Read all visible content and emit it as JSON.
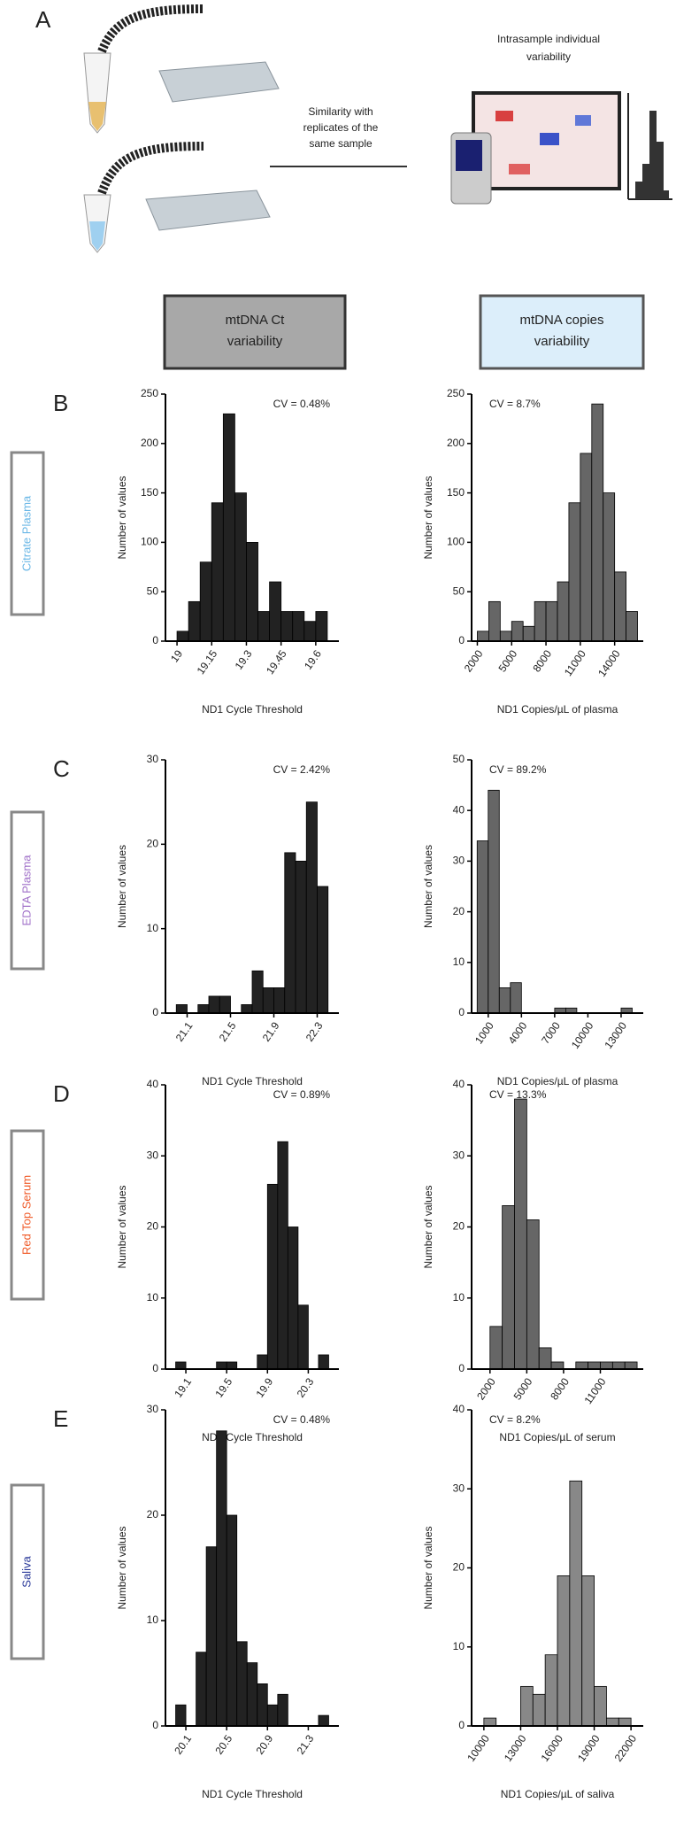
{
  "figure": {
    "panel_a": "A",
    "intrasample": [
      "Intrasample individual",
      "variability"
    ],
    "similarity": [
      "Similarity with",
      "replicates of the",
      "same sample"
    ],
    "header_ct": [
      "mtDNA Ct",
      "variability"
    ],
    "header_copies": [
      "mtDNA copies",
      "variability"
    ],
    "rows": [
      {
        "letter": "B",
        "label": "Citrate Plasma",
        "color": "#6ab7e6"
      },
      {
        "letter": "C",
        "label": "EDTA Plasma",
        "color": "#a070c8"
      },
      {
        "letter": "D",
        "label": "Red Top Serum",
        "color": "#f05a28"
      },
      {
        "letter": "E",
        "label": "Saliva",
        "color": "#2b3a9a"
      }
    ]
  },
  "chart_data": [
    {
      "type": "histogram",
      "annotation": "CV = 0.48%",
      "xlabel": "ND1 Cycle Threshold",
      "ylabel": "Number of values",
      "color": "#222222",
      "bins": [
        19.0,
        19.05,
        19.1,
        19.15,
        19.2,
        19.25,
        19.3,
        19.35,
        19.4,
        19.45,
        19.5,
        19.55,
        19.6,
        19.65
      ],
      "values": [
        10,
        40,
        80,
        140,
        230,
        150,
        100,
        30,
        60,
        30,
        30,
        20,
        30
      ],
      "xlim": [
        18.95,
        19.7
      ],
      "xticks": [
        19.0,
        19.15,
        19.3,
        19.45,
        19.6
      ],
      "ylim": [
        0,
        250
      ],
      "yticks": [
        0,
        50,
        100,
        150,
        200,
        250
      ]
    },
    {
      "type": "histogram",
      "annotation": "CV = 8.7%",
      "xlabel": "ND1 Copies/µL of plasma",
      "ylabel": "Number of values",
      "color": "#666666",
      "bins": [
        2000,
        3000,
        4000,
        5000,
        6000,
        7000,
        8000,
        9000,
        10000,
        11000,
        12000,
        13000,
        14000,
        15000,
        16000
      ],
      "values": [
        10,
        40,
        10,
        20,
        15,
        40,
        40,
        60,
        140,
        190,
        240,
        150,
        70,
        30
      ],
      "xlim": [
        1500,
        16500
      ],
      "xticks": [
        2000,
        5000,
        8000,
        11000,
        14000
      ],
      "ylim": [
        0,
        250
      ],
      "yticks": [
        0,
        50,
        100,
        150,
        200,
        250
      ]
    },
    {
      "type": "histogram",
      "annotation": "CV = 2.42%",
      "xlabel": "ND1 Cycle Threshold",
      "ylabel": "Number of values",
      "color": "#222222",
      "bins": [
        21.0,
        21.1,
        21.2,
        21.3,
        21.4,
        21.5,
        21.6,
        21.7,
        21.8,
        21.9,
        22.0,
        22.1,
        22.2,
        22.3,
        22.4
      ],
      "values": [
        1,
        0,
        1,
        2,
        2,
        0,
        1,
        5,
        3,
        3,
        19,
        18,
        25,
        15
      ],
      "xlim": [
        20.9,
        22.5
      ],
      "xticks": [
        21.1,
        21.5,
        21.9,
        22.3
      ],
      "ylim": [
        0,
        30
      ],
      "yticks": [
        0,
        10,
        20,
        30
      ]
    },
    {
      "type": "histogram",
      "annotation": "CV = 89.2%",
      "xlabel": "ND1 Copies/µL of plasma",
      "ylabel": "Number of values",
      "color": "#666666",
      "bins": [
        0,
        1000,
        2000,
        3000,
        4000,
        5000,
        6000,
        7000,
        8000,
        9000,
        10000,
        11000,
        12000,
        13000,
        14000
      ],
      "values": [
        34,
        44,
        5,
        6,
        0,
        0,
        0,
        1,
        1,
        0,
        0,
        0,
        0,
        1
      ],
      "xlim": [
        -500,
        15000
      ],
      "xticks": [
        1000,
        4000,
        7000,
        10000,
        13000
      ],
      "ylim": [
        0,
        50
      ],
      "yticks": [
        0,
        10,
        20,
        30,
        40,
        50
      ]
    },
    {
      "type": "histogram",
      "annotation": "CV = 0.89%",
      "xlabel": "ND1 Cycle Threshold",
      "ylabel": "Number of values",
      "color": "#222222",
      "bins": [
        19.0,
        19.1,
        19.2,
        19.3,
        19.4,
        19.5,
        19.6,
        19.7,
        19.8,
        19.9,
        20.0,
        20.1,
        20.2,
        20.3,
        20.4,
        20.5
      ],
      "values": [
        1,
        0,
        0,
        0,
        1,
        1,
        0,
        0,
        2,
        26,
        32,
        20,
        9,
        0,
        2
      ],
      "xlim": [
        18.9,
        20.6
      ],
      "xticks": [
        19.1,
        19.5,
        19.9,
        20.3
      ],
      "ylim": [
        0,
        40
      ],
      "yticks": [
        0,
        10,
        20,
        30,
        40
      ]
    },
    {
      "type": "histogram",
      "annotation": "CV = 13.3%",
      "xlabel": "ND1 Copies/µL of serum",
      "ylabel": "Number of values",
      "color": "#666666",
      "bins": [
        1000,
        2000,
        3000,
        4000,
        5000,
        6000,
        7000,
        8000,
        9000,
        10000,
        11000,
        12000,
        13000,
        14000
      ],
      "values": [
        0,
        6,
        23,
        38,
        21,
        3,
        1,
        0,
        1,
        1,
        1,
        1,
        1
      ],
      "xlim": [
        500,
        14500
      ],
      "xticks": [
        2000,
        5000,
        8000,
        11000
      ],
      "ylim": [
        0,
        40
      ],
      "yticks": [
        0,
        10,
        20,
        30,
        40
      ]
    },
    {
      "type": "histogram",
      "annotation": "CV = 0.48%",
      "xlabel": "ND1 Cycle Threshold",
      "ylabel": "Number of values",
      "color": "#222222",
      "bins": [
        20.0,
        20.1,
        20.2,
        20.3,
        20.4,
        20.5,
        20.6,
        20.7,
        20.8,
        20.9,
        21.0,
        21.1,
        21.2,
        21.3,
        21.4,
        21.5
      ],
      "values": [
        2,
        0,
        7,
        17,
        28,
        20,
        8,
        6,
        4,
        2,
        3,
        0,
        0,
        0,
        1
      ],
      "xlim": [
        19.9,
        21.6
      ],
      "xticks": [
        20.1,
        20.5,
        20.9,
        21.3
      ],
      "ylim": [
        0,
        30
      ],
      "yticks": [
        0,
        10,
        20,
        30
      ]
    },
    {
      "type": "histogram",
      "annotation": "CV = 8.2%",
      "xlabel": "ND1 Copies/µL of saliva",
      "ylabel": "Number of values",
      "color": "#888888",
      "bins": [
        10000,
        11000,
        12000,
        13000,
        14000,
        15000,
        16000,
        17000,
        18000,
        19000,
        20000,
        21000,
        22000
      ],
      "values": [
        1,
        0,
        0,
        5,
        4,
        9,
        19,
        31,
        19,
        5,
        1,
        1
      ],
      "xlim": [
        9000,
        23000
      ],
      "xticks": [
        10000,
        13000,
        16000,
        19000,
        22000
      ],
      "ylim": [
        0,
        40
      ],
      "yticks": [
        0,
        10,
        20,
        30,
        40
      ]
    }
  ]
}
